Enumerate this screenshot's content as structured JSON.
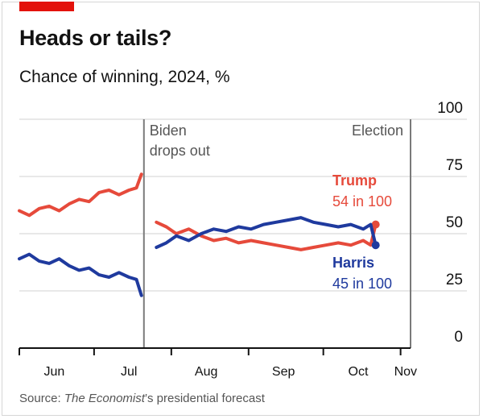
{
  "header": {
    "title": "Heads or tails?",
    "subtitle": "Chance of winning, 2024, %"
  },
  "source": {
    "prefix": "Source: ",
    "italic": "The Economist",
    "suffix": "’s presidential forecast"
  },
  "colors": {
    "trump": "#e64a3b",
    "harris": "#1f3a9e",
    "accent": "#e3120b",
    "grid": "#d0d0d0",
    "event_line": "#7a7a7a"
  },
  "chart_data": {
    "type": "line",
    "ylim": [
      0,
      100
    ],
    "yticks": [
      0,
      25,
      50,
      75,
      100
    ],
    "x_range": [
      "2024-06-01",
      "2024-11-05"
    ],
    "month_ticks": [
      {
        "date": "2024-06-01",
        "label": ""
      },
      {
        "date": "2024-07-01",
        "label": ""
      },
      {
        "date": "2024-08-01",
        "label": ""
      },
      {
        "date": "2024-09-01",
        "label": ""
      },
      {
        "date": "2024-10-01",
        "label": ""
      },
      {
        "date": "2024-11-01",
        "label": ""
      }
    ],
    "month_labels": [
      {
        "date": "2024-06-15",
        "label": "Jun"
      },
      {
        "date": "2024-07-15",
        "label": "Jul"
      },
      {
        "date": "2024-08-15",
        "label": "Aug"
      },
      {
        "date": "2024-09-15",
        "label": "Sep"
      },
      {
        "date": "2024-10-15",
        "label": "Oct"
      },
      {
        "date": "2024-11-03",
        "label": "Nov"
      }
    ],
    "events": [
      {
        "date": "2024-07-21",
        "lines": [
          "Biden",
          "drops out"
        ],
        "align": "start"
      },
      {
        "date": "2024-11-05",
        "lines": [
          "Election"
        ],
        "align": "end"
      }
    ],
    "series": [
      {
        "name": "Trump",
        "label_value": "54 in 100",
        "segments": [
          {
            "x": [
              "2024-06-01",
              "2024-06-05",
              "2024-06-09",
              "2024-06-13",
              "2024-06-17",
              "2024-06-21",
              "2024-06-25",
              "2024-06-29",
              "2024-07-03",
              "2024-07-07",
              "2024-07-11",
              "2024-07-15",
              "2024-07-18",
              "2024-07-20"
            ],
            "y": [
              60,
              58,
              61,
              62,
              60,
              63,
              65,
              64,
              68,
              69,
              67,
              69,
              70,
              76
            ]
          },
          {
            "x": [
              "2024-07-26",
              "2024-07-30",
              "2024-08-03",
              "2024-08-08",
              "2024-08-13",
              "2024-08-18",
              "2024-08-23",
              "2024-08-28",
              "2024-09-02",
              "2024-09-07",
              "2024-09-12",
              "2024-09-17",
              "2024-09-22",
              "2024-09-27",
              "2024-10-02",
              "2024-10-07",
              "2024-10-12",
              "2024-10-17",
              "2024-10-20",
              "2024-10-22"
            ],
            "y": [
              55,
              53,
              50,
              52,
              49,
              47,
              48,
              46,
              47,
              46,
              45,
              44,
              43,
              44,
              45,
              46,
              45,
              47,
              45,
              54
            ]
          }
        ]
      },
      {
        "name": "Harris",
        "label_value": "45 in 100",
        "segments": [
          {
            "x": [
              "2024-06-01",
              "2024-06-05",
              "2024-06-09",
              "2024-06-13",
              "2024-06-17",
              "2024-06-21",
              "2024-06-25",
              "2024-06-29",
              "2024-07-03",
              "2024-07-07",
              "2024-07-11",
              "2024-07-15",
              "2024-07-18",
              "2024-07-20"
            ],
            "y": [
              39,
              41,
              38,
              37,
              39,
              36,
              34,
              35,
              32,
              31,
              33,
              31,
              30,
              23
            ]
          },
          {
            "x": [
              "2024-07-26",
              "2024-07-30",
              "2024-08-03",
              "2024-08-08",
              "2024-08-13",
              "2024-08-18",
              "2024-08-23",
              "2024-08-28",
              "2024-09-02",
              "2024-09-07",
              "2024-09-12",
              "2024-09-17",
              "2024-09-22",
              "2024-09-27",
              "2024-10-02",
              "2024-10-07",
              "2024-10-12",
              "2024-10-17",
              "2024-10-20",
              "2024-10-22"
            ],
            "y": [
              44,
              46,
              49,
              47,
              50,
              52,
              51,
              53,
              52,
              54,
              55,
              56,
              57,
              55,
              54,
              53,
              54,
              52,
              54,
              45
            ]
          }
        ]
      }
    ]
  }
}
